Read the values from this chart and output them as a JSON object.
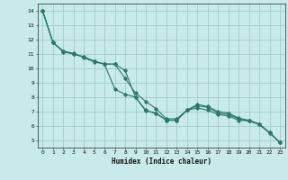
{
  "xlabel": "Humidex (Indice chaleur)",
  "xlim": [
    -0.5,
    23.5
  ],
  "ylim": [
    4.5,
    14.5
  ],
  "xticks": [
    0,
    1,
    2,
    3,
    4,
    5,
    6,
    7,
    8,
    9,
    10,
    11,
    12,
    13,
    14,
    15,
    16,
    17,
    18,
    19,
    20,
    21,
    22,
    23
  ],
  "yticks": [
    5,
    6,
    7,
    8,
    9,
    10,
    11,
    12,
    13,
    14
  ],
  "bg_color": "#c8eaea",
  "grid_color": "#a0cccc",
  "line_color": "#2a7a6a",
  "line1_x": [
    0,
    1,
    2,
    3,
    4,
    5,
    6,
    7,
    8,
    9,
    10,
    11,
    12,
    13,
    14,
    15,
    16,
    17,
    18,
    19,
    20,
    21,
    22,
    23
  ],
  "line1_y": [
    14.0,
    11.8,
    11.2,
    11.05,
    10.75,
    10.45,
    10.3,
    10.3,
    9.85,
    8.0,
    7.05,
    6.9,
    6.4,
    6.4,
    7.1,
    7.25,
    7.1,
    6.8,
    6.7,
    6.4,
    6.35,
    6.1,
    5.5,
    4.85
  ],
  "line2_x": [
    0,
    1,
    2,
    3,
    4,
    5,
    6,
    7,
    8,
    9,
    10,
    11,
    12,
    13,
    14,
    15,
    16,
    17,
    18,
    19,
    20,
    21,
    22,
    23
  ],
  "line2_y": [
    14.0,
    11.8,
    11.15,
    11.0,
    10.8,
    10.5,
    10.3,
    8.55,
    8.2,
    8.0,
    7.1,
    6.85,
    6.4,
    6.4,
    7.1,
    7.5,
    7.35,
    7.0,
    6.9,
    6.55,
    6.4,
    6.15,
    5.55,
    4.85
  ],
  "line3_x": [
    0,
    1,
    2,
    3,
    4,
    5,
    6,
    7,
    8,
    9,
    10,
    11,
    12,
    13,
    14,
    15,
    16,
    17,
    18,
    19,
    20,
    21,
    22,
    23
  ],
  "line3_y": [
    14.0,
    11.8,
    11.2,
    11.0,
    10.8,
    10.5,
    10.3,
    10.3,
    9.3,
    8.3,
    7.7,
    7.2,
    6.5,
    6.5,
    7.1,
    7.4,
    7.3,
    6.9,
    6.8,
    6.5,
    6.35,
    6.1,
    5.55,
    4.85
  ]
}
